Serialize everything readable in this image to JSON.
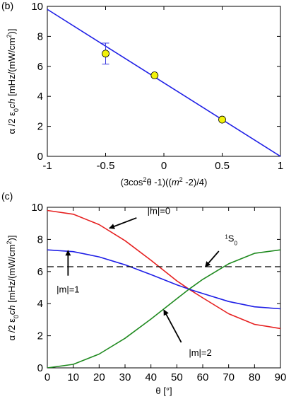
{
  "chart_data": [
    {
      "panel_label": "(b)",
      "type": "scatter",
      "xlabel": "(3cos²θ -1)((m² -2)/4)",
      "ylabel": "α /2  ε₀ch [mHz/(mW/cm²)]",
      "xlim": [
        -1,
        1
      ],
      "ylim": [
        0,
        10
      ],
      "x_ticks": [
        "-1",
        "-0.5",
        "0",
        "0.5",
        "1"
      ],
      "y_ticks": [
        "0",
        "2",
        "4",
        "6",
        "8",
        "10"
      ],
      "grid": false,
      "colors": {
        "line": "#1f1fe6",
        "marker_fill": "#f2f20a",
        "errorbar": "#3a3ae0"
      },
      "points": [
        {
          "x": -0.5,
          "y": 6.85,
          "yerr": 0.7
        },
        {
          "x": -0.08,
          "y": 5.4,
          "yerr": 0
        },
        {
          "x": 0.5,
          "y": 2.45,
          "yerr": 0
        }
      ],
      "fit_line": {
        "x": [
          -1,
          1
        ],
        "y": [
          9.8,
          0
        ]
      }
    },
    {
      "panel_label": "(c)",
      "type": "line",
      "xlabel": "θ [°]",
      "ylabel": "α /2  ε₀ch [mHz/(mW/cm²)]",
      "xlim": [
        0,
        90
      ],
      "ylim": [
        0,
        10
      ],
      "x_ticks": [
        "0",
        "10",
        "20",
        "30",
        "40",
        "50",
        "60",
        "70",
        "80",
        "90"
      ],
      "y_ticks": [
        "0",
        "2",
        "4",
        "6",
        "8",
        "10"
      ],
      "grid": false,
      "series": [
        {
          "name": "|m|=0",
          "color": "#e62020",
          "style": "solid",
          "x": [
            0,
            10,
            20,
            30,
            40,
            50,
            54.7,
            60,
            70,
            80,
            90
          ],
          "y": [
            9.8,
            9.57,
            8.92,
            7.92,
            6.7,
            5.42,
            4.9,
            4.36,
            3.37,
            2.71,
            2.45
          ]
        },
        {
          "name": "|m|=1",
          "color": "#1f1fe6",
          "style": "solid",
          "x": [
            0,
            10,
            20,
            30,
            40,
            50,
            54.7,
            60,
            70,
            80,
            90
          ],
          "y": [
            7.35,
            7.24,
            6.91,
            6.42,
            5.81,
            5.17,
            4.9,
            4.63,
            4.13,
            3.8,
            3.68
          ]
        },
        {
          "name": "|m|=2",
          "color": "#1f8a1f",
          "style": "solid",
          "x": [
            0,
            10,
            20,
            30,
            40,
            50,
            54.7,
            60,
            70,
            80,
            90
          ],
          "y": [
            0,
            0.22,
            0.86,
            1.84,
            3.04,
            4.31,
            4.9,
            5.51,
            6.48,
            7.13,
            7.35
          ]
        },
        {
          "name": "¹S₀",
          "color": "#000000",
          "style": "dashed",
          "x": [
            0,
            90
          ],
          "y": [
            6.3,
            6.3
          ]
        }
      ],
      "annotations": [
        {
          "text": "|m|=0",
          "arrow_to": [
            24,
            8.7
          ],
          "label_at": [
            37,
            9.5
          ]
        },
        {
          "text": "¹S₀",
          "arrow_to": [
            61,
            6.3
          ],
          "label_at": [
            68,
            7.6
          ]
        },
        {
          "text": "|m|=1",
          "arrow_to": [
            8,
            7.3
          ],
          "label_at": [
            8,
            5.3
          ]
        },
        {
          "text": "|m|=2",
          "arrow_to": [
            45,
            3.6
          ],
          "label_at": [
            53,
            1.2
          ]
        }
      ]
    }
  ]
}
